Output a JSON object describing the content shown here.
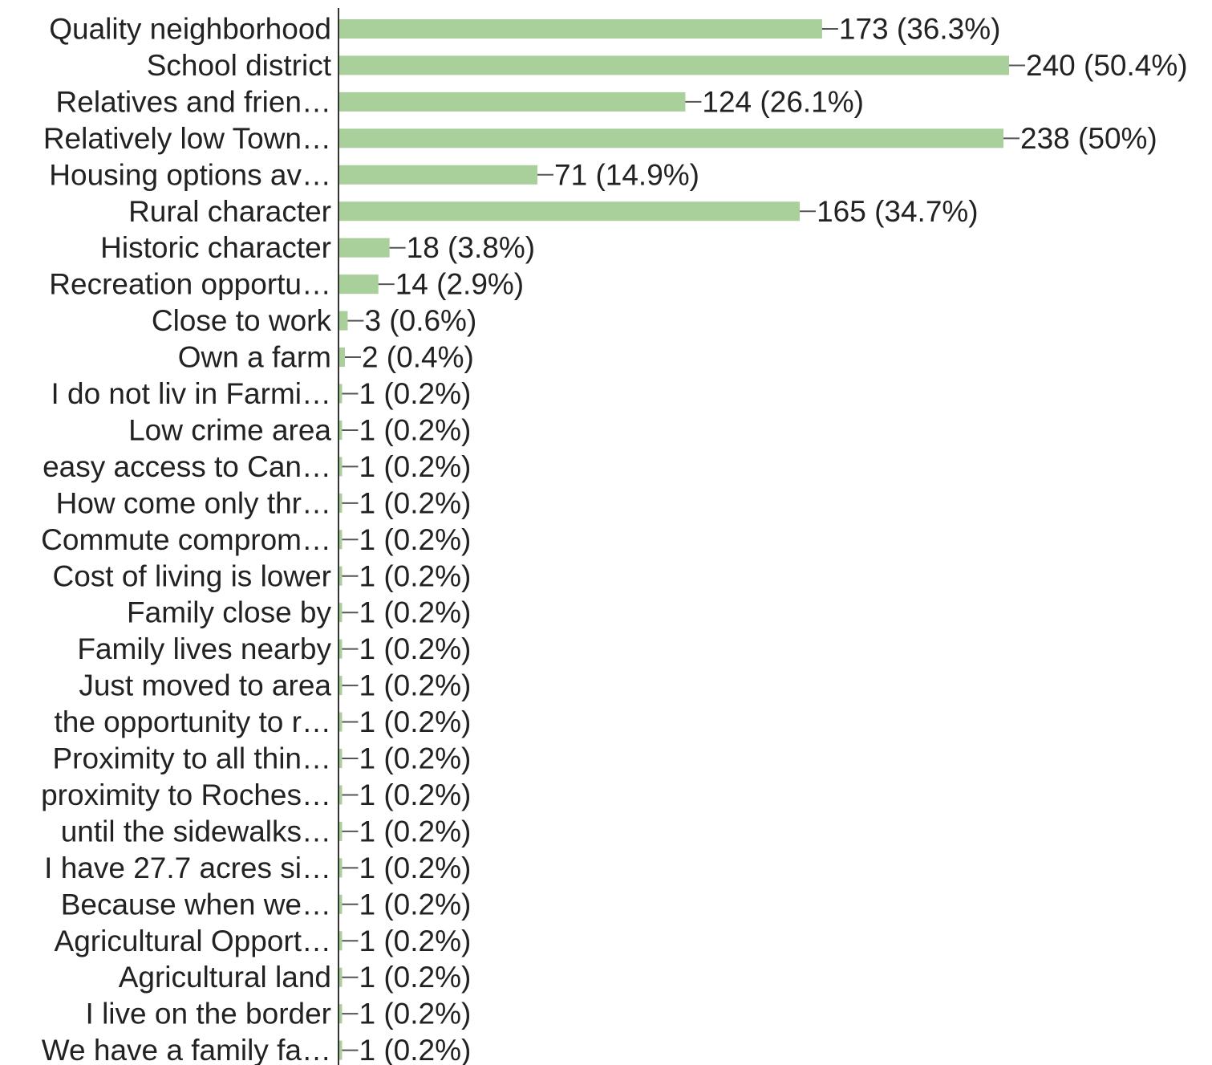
{
  "chart_data": {
    "type": "bar",
    "orientation": "horizontal",
    "title": "",
    "xlabel": "",
    "ylabel": "",
    "bar_color": "#a9cf9a",
    "grid": false,
    "xlim": [
      0,
      240
    ],
    "categories": [
      "Quality neighborhood",
      "School district",
      "Relatives and frien…",
      "Relatively low Town…",
      "Housing options av…",
      "Rural character",
      "Historic character",
      "Recreation opportu…",
      "Close to work",
      "Own a farm",
      "I do not liv in Farmi…",
      "Low crime area",
      "easy access to Can…",
      "How come only thr…",
      "Commute comprom…",
      "Cost of living is lower",
      "Family close by",
      "Family lives nearby",
      "Just moved to area",
      "the opportunity to r…",
      "Proximity to all thin…",
      "proximity to Roches…",
      "until the sidewalks…",
      "I have 27.7 acres si…",
      "Because when we…",
      "Agricultural Opport…",
      "Agricultural land",
      "I live on the border",
      "We have a family fa…"
    ],
    "values": [
      173,
      240,
      124,
      238,
      71,
      165,
      18,
      14,
      3,
      2,
      1,
      1,
      1,
      1,
      1,
      1,
      1,
      1,
      1,
      1,
      1,
      1,
      1,
      1,
      1,
      1,
      1,
      1,
      1
    ],
    "value_labels": [
      "173 (36.3%)",
      "240 (50.4%)",
      "124 (26.1%)",
      "238 (50%)",
      "71 (14.9%)",
      "165 (34.7%)",
      "18 (3.8%)",
      "14 (2.9%)",
      "3 (0.6%)",
      "2 (0.4%)",
      "1 (0.2%)",
      "1 (0.2%)",
      "1 (0.2%)",
      "1 (0.2%)",
      "1 (0.2%)",
      "1 (0.2%)",
      "1 (0.2%)",
      "1 (0.2%)",
      "1 (0.2%)",
      "1 (0.2%)",
      "1 (0.2%)",
      "1 (0.2%)",
      "1 (0.2%)",
      "1 (0.2%)",
      "1 (0.2%)",
      "1 (0.2%)",
      "1 (0.2%)",
      "1 (0.2%)",
      "1 (0.2%)"
    ]
  }
}
